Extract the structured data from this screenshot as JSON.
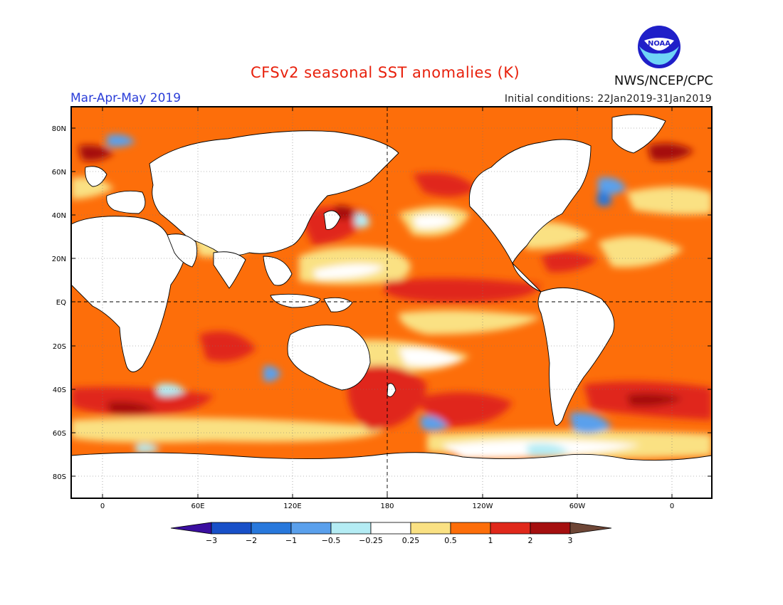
{
  "header": {
    "title": "CFSv2 seasonal SST anomalies (K)",
    "season": "Mar-Apr-May 2019",
    "agency": "NWS/NCEP/CPC",
    "initial_conditions": "Initial conditions: 22Jan2019-31Jan2019",
    "logo_text": "NOAA"
  },
  "map": {
    "lat_labels": [
      "80N",
      "60N",
      "40N",
      "20N",
      "EQ",
      "20S",
      "40S",
      "60S",
      "80S"
    ],
    "lon_labels": [
      "0",
      "60E",
      "120E",
      "180",
      "120W",
      "60W",
      "0"
    ]
  },
  "legend": {
    "labels": [
      "-3",
      "-2",
      "-1",
      "-0.5",
      "-0.25",
      "0.25",
      "0.5",
      "1",
      "2",
      "3"
    ],
    "colors": [
      "#3b0fa0",
      "#1850c8",
      "#2878dc",
      "#5aa0ec",
      "#b4ecf4",
      "#ffffff",
      "#fae183",
      "#fd6e0a",
      "#e0281a",
      "#a50f0f",
      "#6e4636"
    ]
  },
  "colors": {
    "title": "#e8200c",
    "season": "#2a3dd8",
    "land": "#ffffff",
    "coast": "#000000"
  }
}
